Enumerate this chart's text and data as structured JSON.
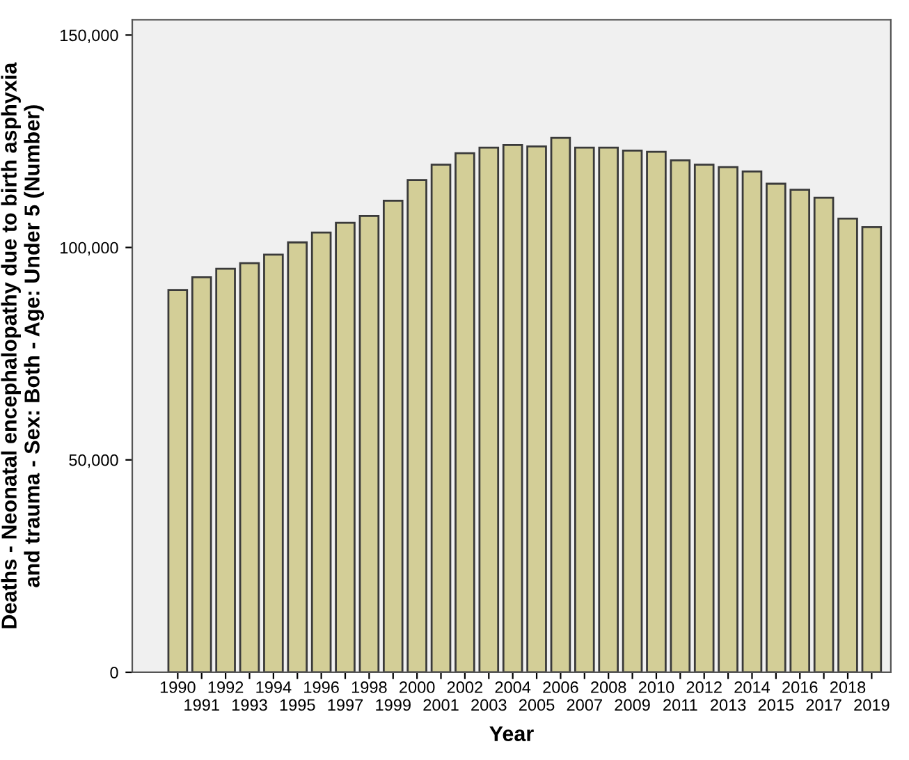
{
  "chart_data": {
    "type": "bar",
    "xlabel": "Year",
    "ylabel": "Deaths - Neonatal encephalopathy due to birth asphyxia\nand trauma - Sex: Both - Age: Under 5 (Number)",
    "categories": [
      "1990",
      "1991",
      "1992",
      "1993",
      "1994",
      "1995",
      "1996",
      "1997",
      "1998",
      "1999",
      "2000",
      "2001",
      "2002",
      "2003",
      "2004",
      "2005",
      "2006",
      "2007",
      "2008",
      "2009",
      "2010",
      "2011",
      "2012",
      "2013",
      "2014",
      "2015",
      "2016",
      "2017",
      "2018",
      "2019"
    ],
    "values": [
      90000,
      93000,
      95000,
      96300,
      98300,
      101200,
      103500,
      105800,
      107400,
      111000,
      115900,
      119500,
      122200,
      123500,
      124100,
      123800,
      125800,
      123500,
      123500,
      122800,
      122500,
      120500,
      119500,
      118900,
      117900,
      115000,
      113600,
      111700,
      106800,
      104800
    ],
    "color": "#d3ce97",
    "ylim": [
      0,
      153600
    ],
    "yticks": [
      {
        "value": 0,
        "label": "0"
      },
      {
        "value": 50000,
        "label": "50,000"
      },
      {
        "value": 100000,
        "label": "100,000"
      },
      {
        "value": 150000,
        "label": "150,000"
      }
    ],
    "grid": false,
    "legend": false
  }
}
